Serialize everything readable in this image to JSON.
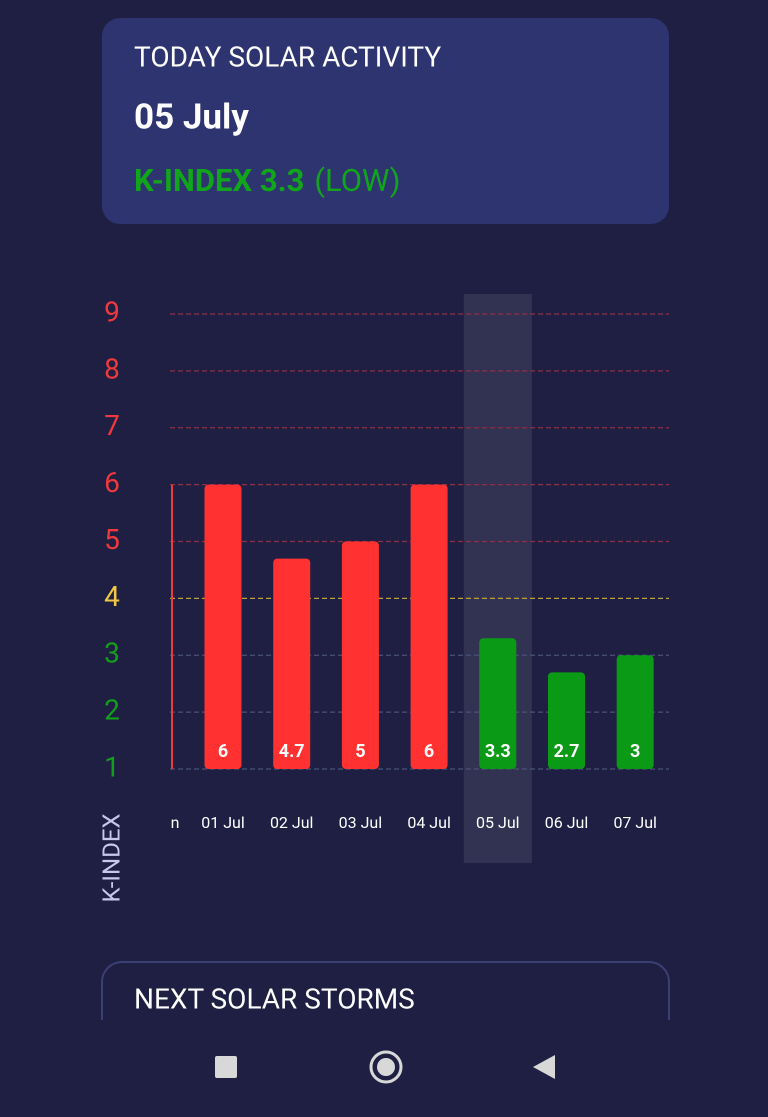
{
  "header": {
    "title": "TODAY SOLAR ACTIVITY",
    "date": "05 July",
    "index_text": "K-INDEX 3.3",
    "level": "(LOW)"
  },
  "chart_data": {
    "type": "bar",
    "y_label": "K-INDEX",
    "categories": [
      "n",
      "01 Jul",
      "02 Jul",
      "03 Jul",
      "04 Jul",
      "05 Jul",
      "06 Jul",
      "07 Jul"
    ],
    "values": [
      null,
      6,
      4.7,
      5,
      6,
      3.3,
      2.7,
      3
    ],
    "colors": [
      null,
      "#ff3131",
      "#ff3131",
      "#ff3131",
      "#ff3131",
      "#0a9a16",
      "#0a9a16",
      "#0a9a16"
    ],
    "ylim": [
      1,
      9
    ],
    "yticks": [
      1,
      2,
      3,
      4,
      5,
      6,
      7,
      8,
      9
    ],
    "ytick_colors": [
      "#12a01a",
      "#12a01a",
      "#12a01a",
      "#f2c744",
      "#f0393c",
      "#f0393c",
      "#f0393c",
      "#f0393c",
      "#f0393c"
    ],
    "grid_colors": [
      "#4c5378",
      "#4c5378",
      "#4c5378",
      "#b9a13e",
      "#8a3246",
      "#8a3246",
      "#8a3246",
      "#8a3246",
      "#8a3246"
    ],
    "grid": true,
    "highlight_index": 5
  },
  "next_card": {
    "title": "NEXT SOLAR STORMS"
  }
}
